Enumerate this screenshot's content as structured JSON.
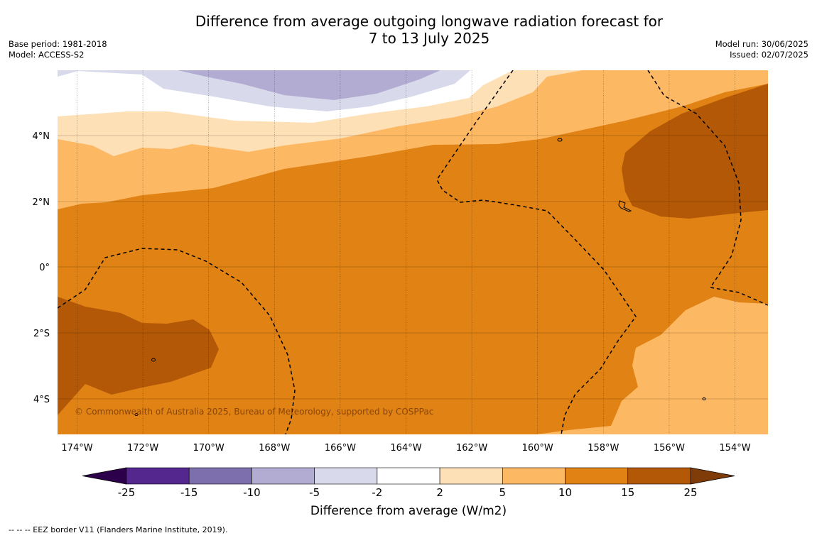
{
  "header": {
    "title_line1": "Difference from average outgoing longwave radiation forecast for",
    "title_line2": "7 to 13 July 2025",
    "base_period": "Base period: 1981-2018",
    "model": "Model: ACCESS-S2",
    "model_run": "Model run: 30/06/2025",
    "issued": "Issued: 02/07/2025"
  },
  "map": {
    "lat_labels": [
      "4°N",
      "2°N",
      "0°",
      "2°S",
      "4°S"
    ],
    "lon_labels": [
      "174°W",
      "172°W",
      "170°W",
      "168°W",
      "166°W",
      "164°W",
      "162°W",
      "160°W",
      "158°W",
      "156°W",
      "154°W"
    ],
    "copyright": "© Commonwealth of Australia 2025, Bureau of Meteorology, supported by COSPPac"
  },
  "colorbar": {
    "ticks": [
      "-25",
      "-15",
      "-10",
      "-5",
      "-2",
      "2",
      "5",
      "10",
      "15",
      "25"
    ],
    "colors": [
      "#54278f",
      "#7d6fad",
      "#b2abd2",
      "#d8daeb",
      "#ffffff",
      "#fee0b6",
      "#fdb863",
      "#e08214",
      "#b35806"
    ],
    "under_color": "#2d004b",
    "over_color": "#7f3b08",
    "label": "Difference from average (W/m2)"
  },
  "footnote": "--  --  -- EEZ border V11 (Flanders Marine Institute, 2019)."
}
